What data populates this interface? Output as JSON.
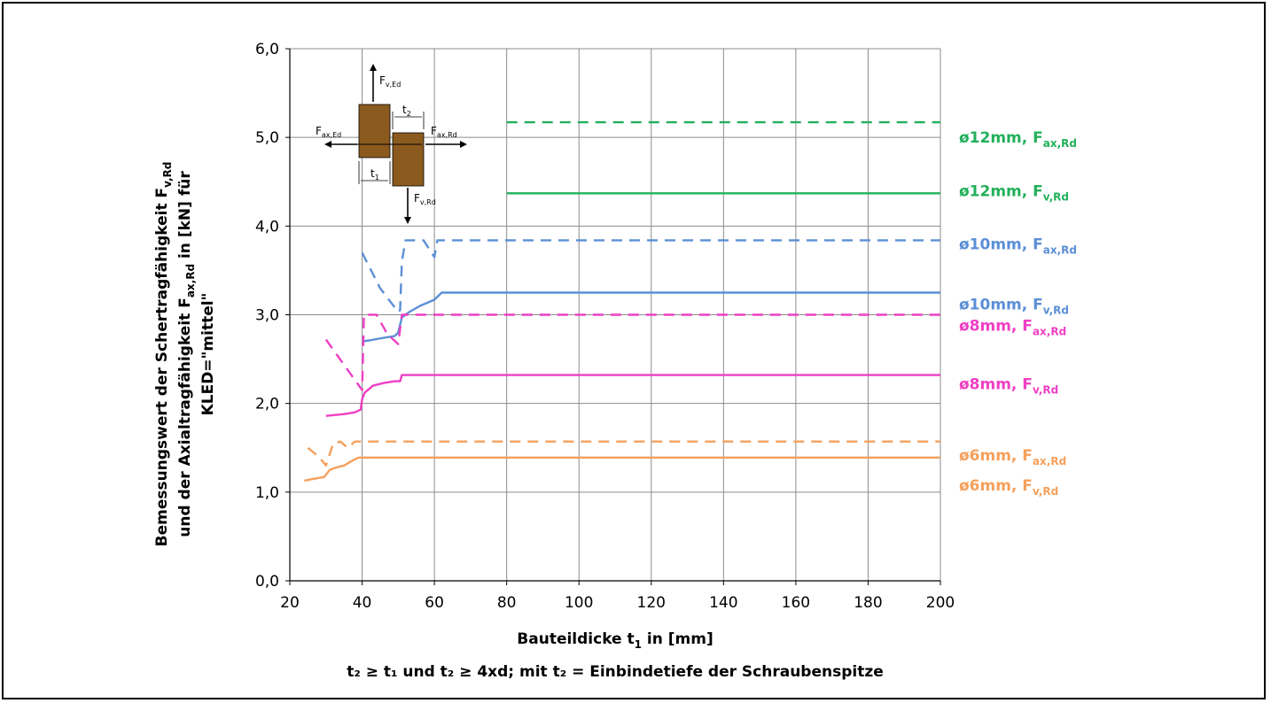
{
  "chart_data": {
    "type": "line",
    "xlabel": "Bauteildicke t₁ in [mm]",
    "xlabel_base": "Bauteildicke t",
    "xlabel_sub": "1",
    "xlabel_rest": " in [mm]",
    "ylabel_line1": "Bemessungswert der Schertragfähigkeit F",
    "ylabel_line1_sub": "v,Rd",
    "ylabel_line2_a": "und der Axialtragfähigkeit F",
    "ylabel_line2_sub": "ax,Rd",
    "ylabel_line2_b": " in [kN] für",
    "ylabel_line3": "KLED=\"mittel\"",
    "condition_a": "t",
    "condition_text": "t₂ ≥ t₁ und t₂ ≥ 4xd; mit t₂ = Einbindetiefe der Schraubenspitze",
    "xlim": [
      20,
      200
    ],
    "ylim": [
      0,
      6
    ],
    "x_ticks": [
      20,
      40,
      60,
      80,
      100,
      120,
      140,
      160,
      180,
      200
    ],
    "x_tick_labels": [
      "20",
      "40",
      "60",
      "80",
      "100",
      "120",
      "140",
      "160",
      "180",
      "200"
    ],
    "y_ticks": [
      0,
      1,
      2,
      3,
      4,
      5,
      6
    ],
    "y_tick_labels": [
      "0,0",
      "1,0",
      "2,0",
      "3,0",
      "4,0",
      "5,0",
      "6,0"
    ],
    "grid": true,
    "series": [
      {
        "name": "ø12mm, Fax,Rd",
        "label_main": "ø12mm, F",
        "label_sub": "ax,Rd",
        "color": "#22b05a",
        "dash": true,
        "label_y": 5.0,
        "segments": [
          [
            [
              80,
              5.17
            ],
            [
              200,
              5.17
            ]
          ]
        ]
      },
      {
        "name": "ø12mm, Fv,Rd",
        "label_main": "ø12mm, F",
        "label_sub": "v,Rd",
        "color": "#22b05a",
        "dash": false,
        "label_y": 4.4,
        "segments": [
          [
            [
              80,
              4.37
            ],
            [
              200,
              4.37
            ]
          ]
        ]
      },
      {
        "name": "ø10mm, Fax,Rd",
        "label_main": "ø10mm, F",
        "label_sub": "ax,Rd",
        "color": "#5b8fd6",
        "dash": true,
        "label_y": 3.8,
        "segments": [
          [
            [
              40,
              3.7
            ],
            [
              45,
              3.3
            ],
            [
              50,
              3.03
            ],
            [
              50.5,
              3.05
            ],
            [
              51,
              3.6
            ],
            [
              52,
              3.84
            ],
            [
              57,
              3.84
            ],
            [
              60,
              3.65
            ],
            [
              60.8,
              3.84
            ],
            [
              200,
              3.84
            ]
          ]
        ]
      },
      {
        "name": "ø10mm, Fv,Rd",
        "label_main": "ø10mm, F",
        "label_sub": "v,Rd",
        "color": "#5b8fd6",
        "dash": false,
        "label_y": 3.12,
        "segments": [
          [
            [
              40,
              2.7
            ],
            [
              42,
              2.71
            ],
            [
              46,
              2.74
            ],
            [
              49,
              2.76
            ],
            [
              50,
              2.8
            ],
            [
              51,
              2.97
            ],
            [
              53,
              3.03
            ],
            [
              56,
              3.1
            ],
            [
              60,
              3.17
            ],
            [
              62,
              3.25
            ],
            [
              200,
              3.25
            ]
          ]
        ]
      },
      {
        "name": "ø8mm, Fax,Rd",
        "label_main": "ø8mm, F",
        "label_sub": "ax,Rd",
        "color": "#ee3fc4",
        "dash": true,
        "label_y": 2.88,
        "segments": [
          [
            [
              30,
              2.72
            ],
            [
              40,
              2.15
            ],
            [
              40.5,
              3.0
            ],
            [
              44,
              3.0
            ],
            [
              47,
              2.78
            ],
            [
              50,
              2.67
            ],
            [
              51,
              3.0
            ],
            [
              200,
              3.0
            ]
          ]
        ]
      },
      {
        "name": "ø8mm, Fv,Rd",
        "label_main": "ø8mm, F",
        "label_sub": "v,Rd",
        "color": "#ee3fc4",
        "dash": false,
        "label_y": 2.22,
        "segments": [
          [
            [
              30,
              1.86
            ],
            [
              35,
              1.88
            ],
            [
              38,
              1.9
            ],
            [
              39.6,
              1.93
            ],
            [
              40,
              2.05
            ],
            [
              40.7,
              2.12
            ],
            [
              43,
              2.2
            ],
            [
              46,
              2.23
            ],
            [
              49,
              2.25
            ],
            [
              50.5,
              2.25
            ],
            [
              51,
              2.32
            ],
            [
              200,
              2.32
            ]
          ]
        ]
      },
      {
        "name": "ø6mm, Fax,Rd",
        "label_main": "ø6mm, F",
        "label_sub": "ax,Rd",
        "color": "#f5a05c",
        "dash": true,
        "label_y": 1.42,
        "segments": [
          [
            [
              25,
              1.5
            ],
            [
              28,
              1.4
            ],
            [
              30,
              1.3
            ],
            [
              32,
              1.55
            ],
            [
              34,
              1.57
            ],
            [
              36,
              1.5
            ],
            [
              38,
              1.57
            ],
            [
              200,
              1.57
            ]
          ]
        ]
      },
      {
        "name": "ø6mm, Fv,Rd",
        "label_main": "ø6mm, F",
        "label_sub": "v,Rd",
        "color": "#f5a05c",
        "dash": false,
        "label_y": 1.08,
        "segments": [
          [
            [
              24,
              1.13
            ],
            [
              28,
              1.16
            ],
            [
              29.5,
              1.17
            ],
            [
              31,
              1.25
            ],
            [
              33,
              1.28
            ],
            [
              35,
              1.3
            ],
            [
              37.5,
              1.36
            ],
            [
              39,
              1.39
            ],
            [
              200,
              1.39
            ]
          ]
        ]
      }
    ]
  },
  "diagram": {
    "f_v_ed_main": "F",
    "f_v_ed_sub": "v,Ed",
    "f_v_rd_main": "F",
    "f_v_rd_sub": "v,Rd",
    "f_ax_ed_main": "F",
    "f_ax_ed_sub": "ax,Ed",
    "f_ax_rd_main": "F",
    "f_ax_rd_sub": "ax,Rd",
    "t1_main": "t",
    "t1_sub": "1",
    "t2_main": "t",
    "t2_sub": "2",
    "block_color": "#8b5a1e"
  }
}
